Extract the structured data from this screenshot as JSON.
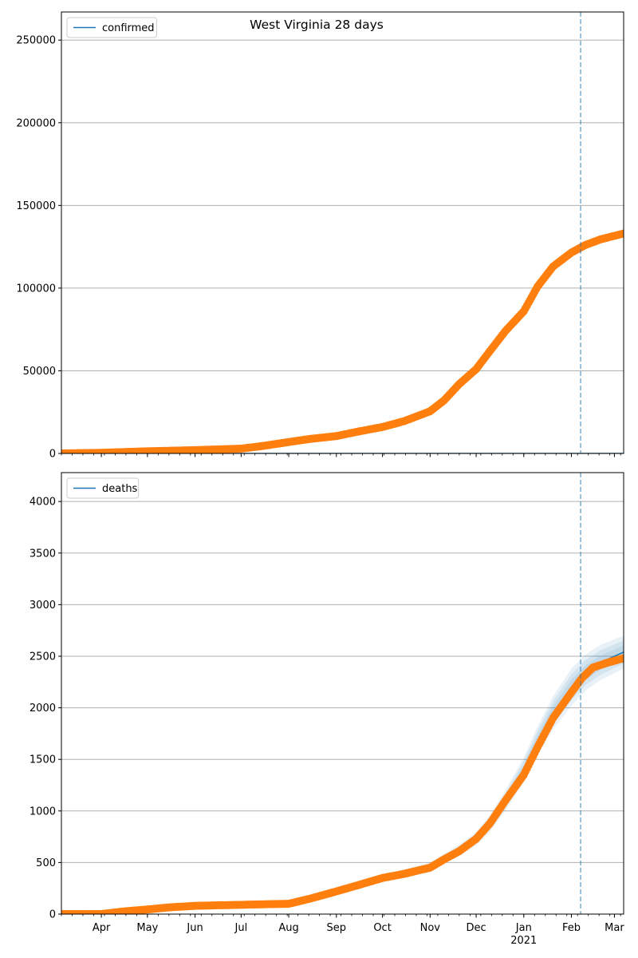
{
  "title": "West Virginia 28 days",
  "colors": {
    "observed": "#ff7f0e",
    "model": "#1f77b4",
    "band": "#1f77b4",
    "grid": "#b0b0b0",
    "vline": "#1f77b4"
  },
  "chart_data": [
    {
      "type": "scatter",
      "legend": "confirmed",
      "legend_placement": "top-left",
      "grid": "y",
      "ylim": [
        0,
        267000
      ],
      "yticks": [
        0,
        50000,
        100000,
        150000,
        200000,
        250000
      ],
      "ytick_labels": [
        "0",
        "50000",
        "100000",
        "150000",
        "200000",
        "250000"
      ],
      "xlim": [
        "2020-03-06",
        "2021-03-07"
      ],
      "vline_date": "2021-02-07",
      "series": [
        {
          "kind": "model_line",
          "dates": [
            "2020-03-06",
            "2021-03-07"
          ],
          "values": [
            0,
            0
          ]
        },
        {
          "kind": "observed",
          "dates": [
            "2020-03-06",
            "2020-04-01",
            "2020-05-01",
            "2020-06-01",
            "2020-07-01",
            "2020-07-15",
            "2020-08-01",
            "2020-08-15",
            "2020-09-01",
            "2020-09-15",
            "2020-10-01",
            "2020-10-15",
            "2020-11-01",
            "2020-11-10",
            "2020-11-20",
            "2020-12-01",
            "2020-12-10",
            "2020-12-20",
            "2021-01-01",
            "2021-01-10",
            "2021-01-20",
            "2021-02-01",
            "2021-02-10",
            "2021-02-20",
            "2021-03-07"
          ],
          "values": [
            0,
            400,
            1300,
            2000,
            2900,
            4500,
            6900,
            8800,
            10500,
            13200,
            16000,
            19500,
            25500,
            32000,
            42000,
            51000,
            62000,
            74000,
            86000,
            101000,
            113000,
            121500,
            126000,
            129500,
            133000
          ]
        }
      ]
    },
    {
      "type": "scatter",
      "legend": "deaths",
      "legend_placement": "top-left",
      "grid": "y",
      "ylim": [
        0,
        4280
      ],
      "yticks": [
        0,
        500,
        1000,
        1500,
        2000,
        2500,
        3000,
        3500,
        4000
      ],
      "ytick_labels": [
        "0",
        "500",
        "1000",
        "1500",
        "2000",
        "2500",
        "3000",
        "3500",
        "4000"
      ],
      "xlim": [
        "2020-03-06",
        "2021-03-07"
      ],
      "xtick_labels": [
        "Apr",
        "May",
        "Jun",
        "Jul",
        "Aug",
        "Sep",
        "Oct",
        "Nov",
        "Dec",
        "Jan",
        "Feb",
        "Mar"
      ],
      "xtick_dates": [
        "2020-04-01",
        "2020-05-01",
        "2020-06-01",
        "2020-07-01",
        "2020-08-01",
        "2020-09-01",
        "2020-10-01",
        "2020-11-01",
        "2020-12-01",
        "2021-01-01",
        "2021-02-01",
        "2021-03-01"
      ],
      "year_label": "2021",
      "vline_date": "2021-02-07",
      "series": [
        {
          "kind": "observed",
          "dates": [
            "2020-03-06",
            "2020-04-01",
            "2020-04-15",
            "2020-05-01",
            "2020-05-15",
            "2020-06-01",
            "2020-06-15",
            "2020-07-01",
            "2020-07-15",
            "2020-08-01",
            "2020-08-15",
            "2020-09-01",
            "2020-09-15",
            "2020-10-01",
            "2020-10-15",
            "2020-11-01",
            "2020-11-10",
            "2020-11-20",
            "2020-12-01",
            "2020-12-10",
            "2020-12-20",
            "2021-01-01",
            "2021-01-10",
            "2021-01-20",
            "2021-02-01",
            "2021-02-08",
            "2021-02-15",
            "2021-02-25",
            "2021-03-07"
          ],
          "values": [
            0,
            0,
            25,
            45,
            65,
            80,
            85,
            90,
            95,
            100,
            150,
            220,
            280,
            350,
            390,
            450,
            530,
            610,
            730,
            880,
            1100,
            1350,
            1620,
            1900,
            2150,
            2290,
            2390,
            2440,
            2480
          ]
        },
        {
          "kind": "model_line",
          "dates": [
            "2020-03-06",
            "2020-04-01",
            "2020-05-01",
            "2020-06-01",
            "2020-07-01",
            "2020-08-01",
            "2020-09-01",
            "2020-10-01",
            "2020-11-01",
            "2020-11-20",
            "2020-12-01",
            "2020-12-10",
            "2020-12-20",
            "2021-01-01",
            "2021-01-10",
            "2021-01-20",
            "2021-02-01",
            "2021-02-10",
            "2021-02-20",
            "2021-03-07"
          ],
          "values": [
            0,
            0,
            45,
            80,
            90,
            100,
            220,
            350,
            460,
            620,
            730,
            880,
            1100,
            1400,
            1680,
            1950,
            2200,
            2340,
            2440,
            2540
          ],
          "band_halfwidths": [
            0,
            0,
            5,
            8,
            10,
            12,
            20,
            30,
            40,
            55,
            65,
            80,
            100,
            120,
            140,
            160,
            180,
            175,
            170,
            160
          ]
        }
      ]
    }
  ]
}
